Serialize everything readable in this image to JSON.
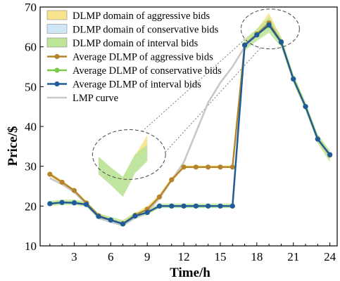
{
  "chart_data": {
    "type": "line",
    "xlabel": "Time/h",
    "ylabel": "Price/$",
    "xlim": [
      0.2,
      24.6
    ],
    "ylim": [
      10,
      70
    ],
    "xticks": [
      3,
      6,
      9,
      12,
      15,
      18,
      21,
      24
    ],
    "yticks": [
      10,
      20,
      30,
      40,
      50,
      60,
      70
    ],
    "legend_position": "top-left",
    "x": [
      1,
      2,
      3,
      4,
      5,
      6,
      7,
      8,
      9,
      10,
      11,
      12,
      13,
      14,
      15,
      16,
      17,
      18,
      19,
      20,
      21,
      22,
      23,
      24
    ],
    "bands": [
      {
        "name": "DLMP domain of aggressive bids",
        "color": "#f7e48c",
        "lower": [
          27.5,
          25.5,
          23.5,
          20.5,
          17.2,
          16.0,
          15.0,
          17.0,
          18.5,
          21.5,
          26.0,
          29.5,
          29.5,
          29.5,
          29.5,
          29.5,
          59.5,
          62.0,
          64.0,
          60.0,
          51.0,
          44.0,
          36.0,
          31.5
        ],
        "upper": [
          28.5,
          26.5,
          24.3,
          21.2,
          18.0,
          17.0,
          16.2,
          18.3,
          20.0,
          23.0,
          27.3,
          30.2,
          30.2,
          30.2,
          30.2,
          30.2,
          61.5,
          64.5,
          68.5,
          62.5,
          53.0,
          46.0,
          37.8,
          33.8
        ]
      },
      {
        "name": "DLMP domain of conservative bids",
        "color": "#cfe6f7",
        "lower": [
          20.2,
          20.5,
          20.5,
          20.0,
          17.0,
          16.0,
          15.0,
          17.0,
          18.0,
          19.7,
          19.7,
          19.7,
          19.7,
          19.7,
          19.7,
          19.7,
          60.0,
          62.5,
          64.0,
          60.5,
          51.5,
          44.5,
          36.5,
          32.5
        ],
        "upper": [
          21.0,
          21.3,
          21.3,
          20.8,
          17.8,
          17.0,
          16.0,
          18.0,
          18.8,
          20.3,
          20.3,
          20.3,
          20.3,
          20.3,
          20.3,
          20.3,
          61.0,
          63.5,
          66.5,
          61.8,
          52.5,
          45.5,
          37.5,
          33.3
        ]
      },
      {
        "name": "DLMP domain of interval bids",
        "color": "#bfe59b",
        "lower": [
          20.0,
          20.3,
          20.3,
          19.8,
          16.7,
          15.8,
          14.8,
          16.8,
          17.8,
          19.5,
          19.5,
          19.5,
          19.5,
          19.5,
          19.5,
          19.5,
          59.0,
          61.5,
          63.5,
          60.0,
          51.0,
          44.0,
          35.8,
          31.0
        ],
        "upper": [
          21.3,
          21.6,
          21.6,
          21.1,
          18.2,
          17.3,
          16.5,
          18.4,
          19.2,
          20.6,
          20.6,
          20.6,
          20.6,
          20.6,
          20.6,
          20.6,
          62.0,
          64.5,
          67.5,
          62.5,
          53.2,
          46.2,
          38.0,
          34.0
        ]
      }
    ],
    "series": [
      {
        "name": "Average DLMP of aggressive bids",
        "color": "#b5832a",
        "marker": "circle",
        "values": [
          28.0,
          26.0,
          23.9,
          20.8,
          17.6,
          16.5,
          15.6,
          17.7,
          19.2,
          22.3,
          26.6,
          29.8,
          29.8,
          29.8,
          29.8,
          29.8,
          60.5,
          63.2,
          66.0,
          61.3,
          52.0,
          45.0,
          36.9,
          32.8
        ]
      },
      {
        "name": "Average DLMP of conservative bids",
        "color": "#7ec94e",
        "marker": "circle",
        "values": [
          20.6,
          20.9,
          20.9,
          20.4,
          17.4,
          16.5,
          15.5,
          17.5,
          18.4,
          20.0,
          20.0,
          20.0,
          20.0,
          20.0,
          20.0,
          20.0,
          60.5,
          63.0,
          65.3,
          61.1,
          52.0,
          45.0,
          36.9,
          32.9
        ]
      },
      {
        "name": "Average DLMP of interval bids",
        "color": "#1f5b9a",
        "marker": "circle",
        "values": [
          20.6,
          20.9,
          20.8,
          20.4,
          17.4,
          16.5,
          15.5,
          17.5,
          18.4,
          20.0,
          20.0,
          20.0,
          20.0,
          20.0,
          20.0,
          20.0,
          60.4,
          63.0,
          65.5,
          61.2,
          51.9,
          45.0,
          36.8,
          32.9
        ]
      },
      {
        "name": "LMP curve",
        "color": "#c8c8c8",
        "marker": "none",
        "values": [
          27.0,
          25.5,
          23.5,
          20.5,
          17.0,
          16.0,
          15.2,
          17.0,
          18.5,
          22.0,
          26.5,
          31.0,
          38.5,
          46.0,
          51.0,
          55.0,
          60.0,
          63.0,
          65.5,
          61.0,
          52.0,
          45.0,
          37.0,
          32.5
        ]
      }
    ],
    "inset": {
      "source_x_range": [
        5,
        9
      ],
      "target_x_range": [
        5,
        9
      ],
      "target_y_range": [
        22.3,
        37.8
      ]
    },
    "circle_callouts": [
      {
        "x_range": [
          4.5,
          10.5
        ],
        "y_range": [
          26.7,
          39.2
        ]
      },
      {
        "x_range": [
          16.7,
          21.5
        ],
        "y_range": [
          59.5,
          69.5
        ]
      }
    ]
  }
}
